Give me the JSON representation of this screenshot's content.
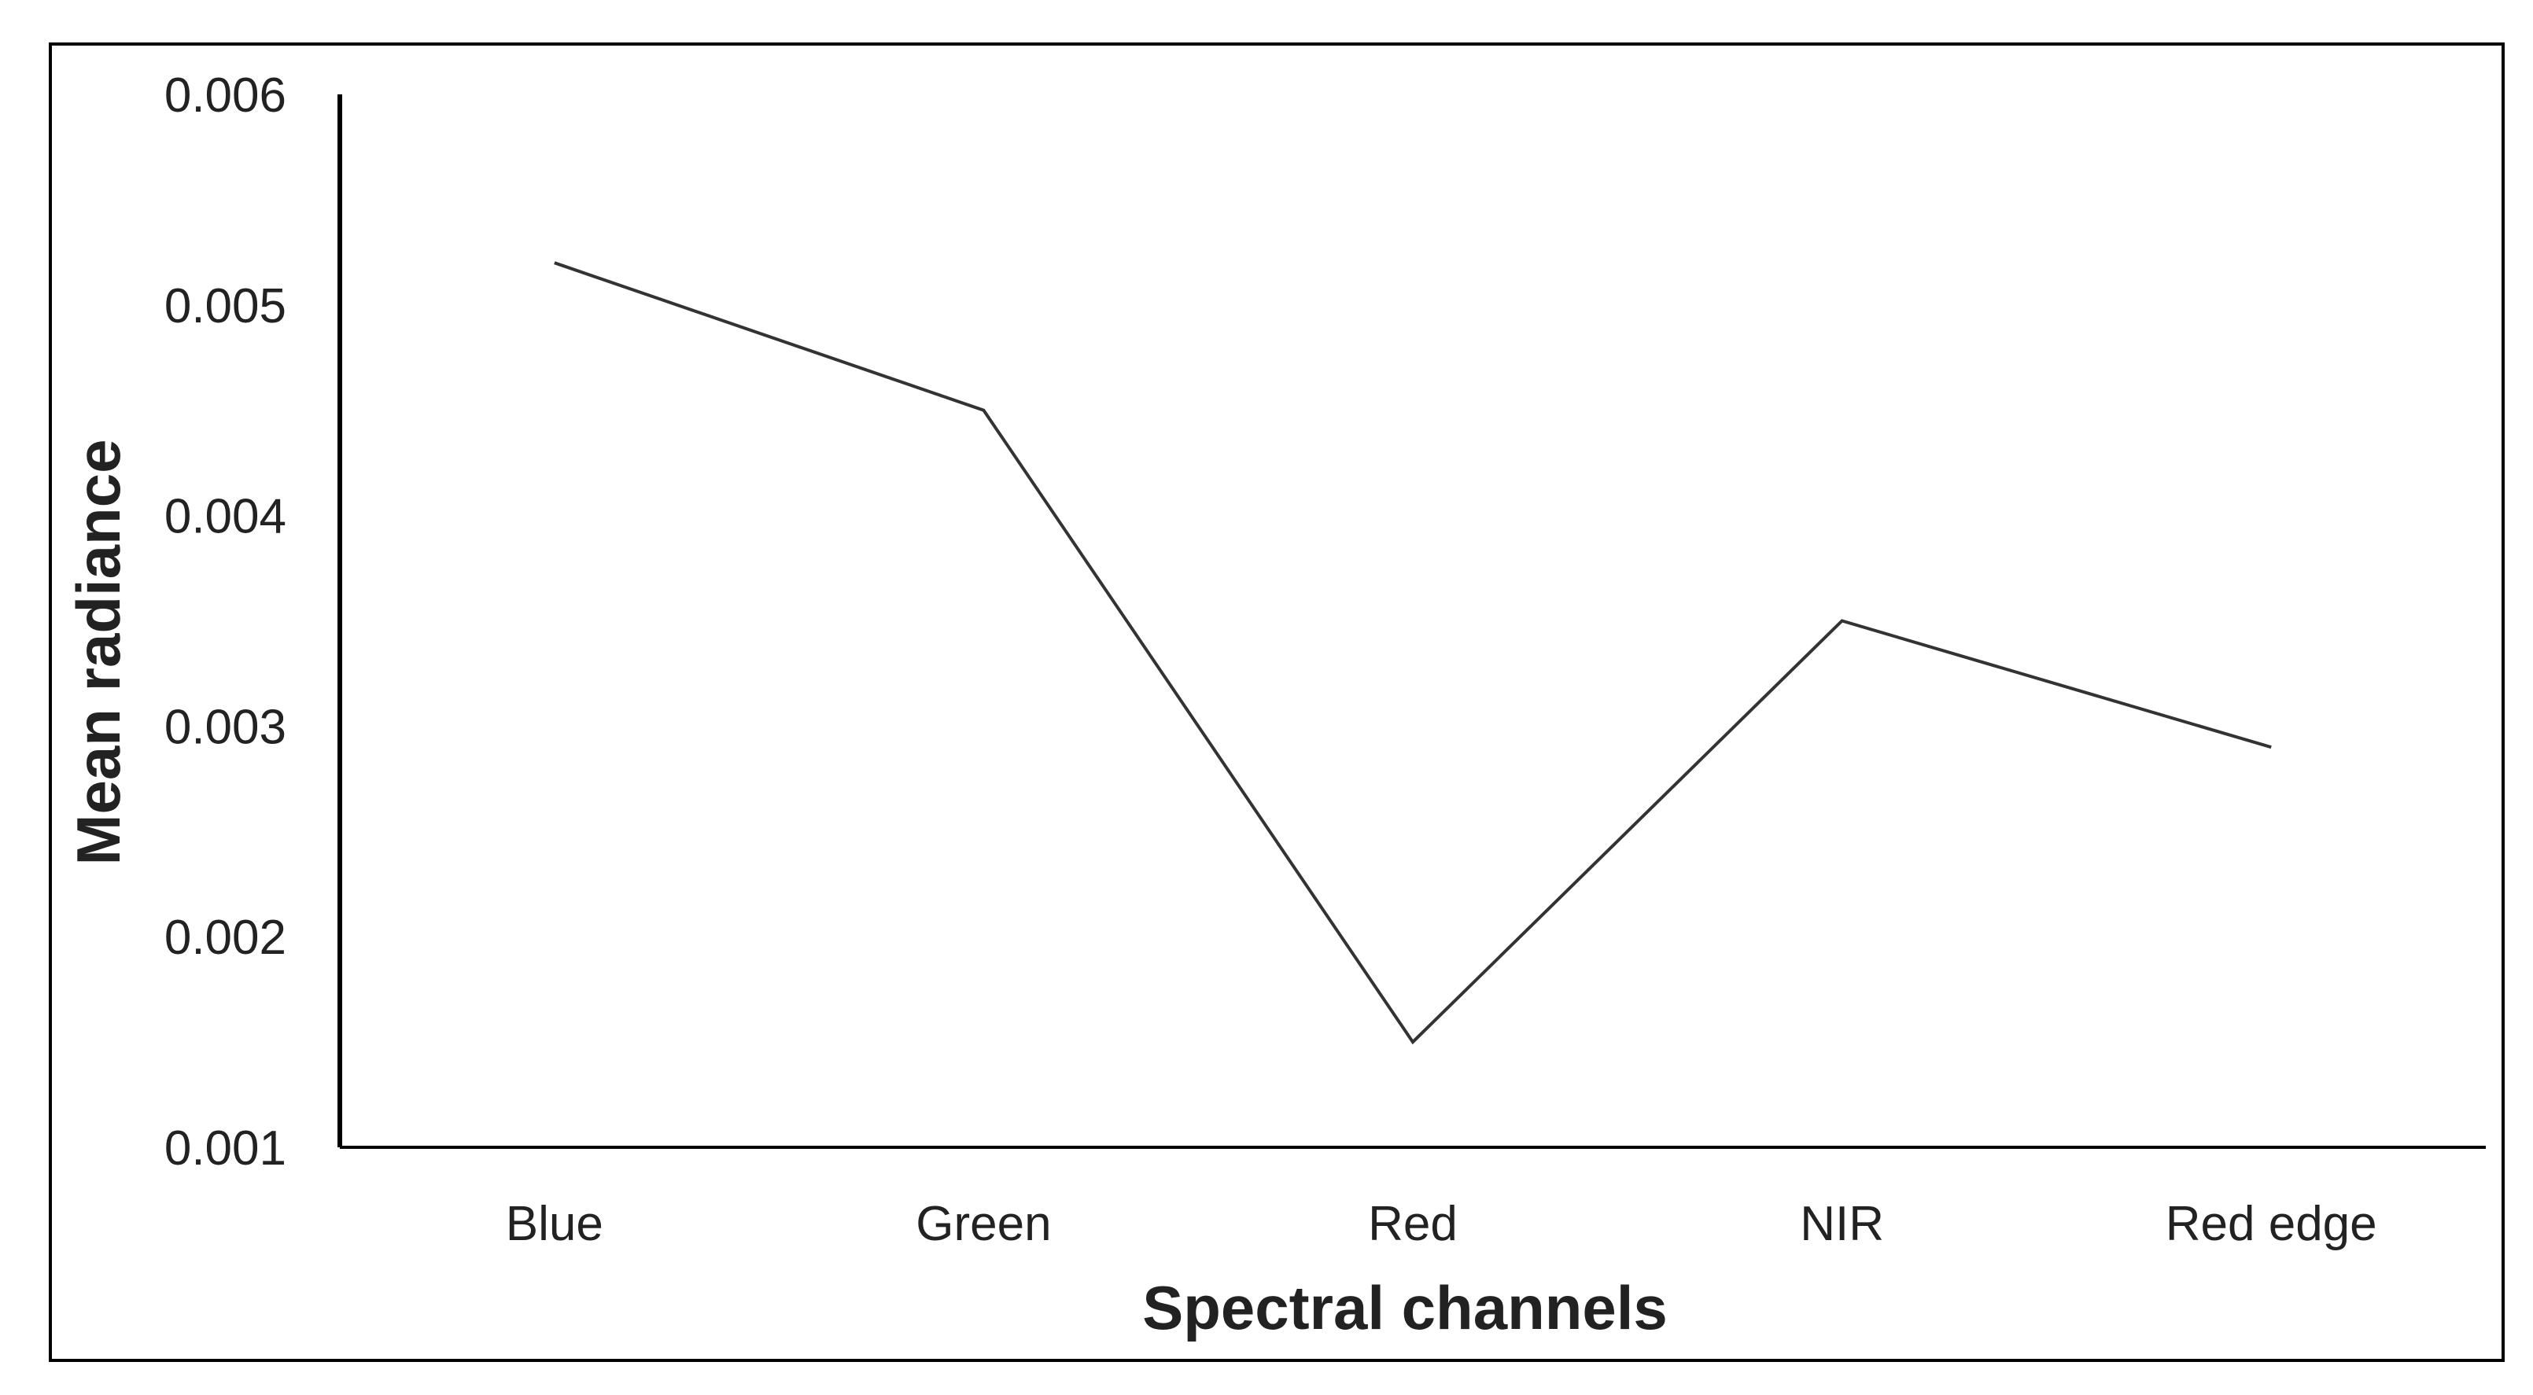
{
  "chart_data": {
    "type": "line",
    "title": "",
    "xlabel": "Spectral channels",
    "ylabel": "Mean radiance",
    "categories": [
      "Blue",
      "Green",
      "Red",
      "NIR",
      "Red edge"
    ],
    "series": [
      {
        "values": [
          0.0052,
          0.0045,
          0.0015,
          0.0035,
          0.0029
        ]
      }
    ],
    "ylim": [
      0.001,
      0.006
    ],
    "yticks": [
      "0.001",
      "0.002",
      "0.003",
      "0.004",
      "0.005",
      "0.006"
    ],
    "grid": false,
    "legend": "none",
    "colors": {
      "line": "#333333",
      "axis": "#000000",
      "frame": "#000000"
    }
  }
}
